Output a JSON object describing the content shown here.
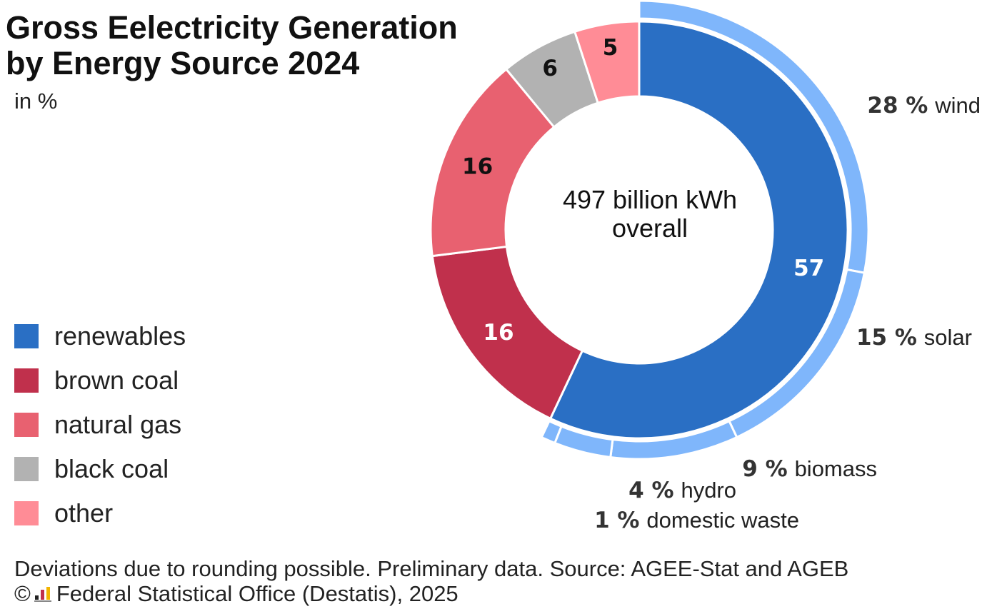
{
  "header": {
    "title_line1": "Gross Eelectricity Generation",
    "title_line2": "by Energy Source 2024",
    "unit": "in %"
  },
  "legend": [
    {
      "label": "renewables",
      "color": "#2a6fc4"
    },
    {
      "label": "brown coal",
      "color": "#c0304c"
    },
    {
      "label": "natural gas",
      "color": "#e86170"
    },
    {
      "label": "black coal",
      "color": "#b2b2b2"
    },
    {
      "label": "other",
      "color": "#ff8c96"
    }
  ],
  "footer": {
    "note": "Deviations due to rounding possible. Preliminary data. Source: AGEE-Stat and AGEB",
    "copyright_symbol": "©",
    "copyright": "Federal Statistical Office (Destatis), 2025"
  },
  "chart_data": {
    "type": "donut",
    "center_label": [
      "497 billion kWh",
      "overall"
    ],
    "inner": [
      {
        "label": "renewables",
        "value": 57,
        "color": "#2a6fc4",
        "text_color": "#ffffff"
      },
      {
        "label": "brown coal",
        "value": 16,
        "color": "#c0304c",
        "text_color": "#ffffff"
      },
      {
        "label": "natural gas",
        "value": 16,
        "color": "#e86170",
        "text_color": "#111111"
      },
      {
        "label": "black coal",
        "value": 6,
        "color": "#b2b2b2",
        "text_color": "#111111"
      },
      {
        "label": "other",
        "value": 5,
        "color": "#ff8c96",
        "text_color": "#111111"
      }
    ],
    "outer": {
      "parent": "renewables",
      "color": "#7fb6fb",
      "segments": [
        {
          "label": "wind",
          "value": 28,
          "value_text": "28 %"
        },
        {
          "label": "solar",
          "value": 15,
          "value_text": "15 %"
        },
        {
          "label": "biomass",
          "value": 9,
          "value_text": "9 %"
        },
        {
          "label": "hydro",
          "value": 4,
          "value_text": "4 %"
        },
        {
          "label": "domestic waste",
          "value": 1,
          "value_text": "1 %"
        }
      ]
    }
  }
}
